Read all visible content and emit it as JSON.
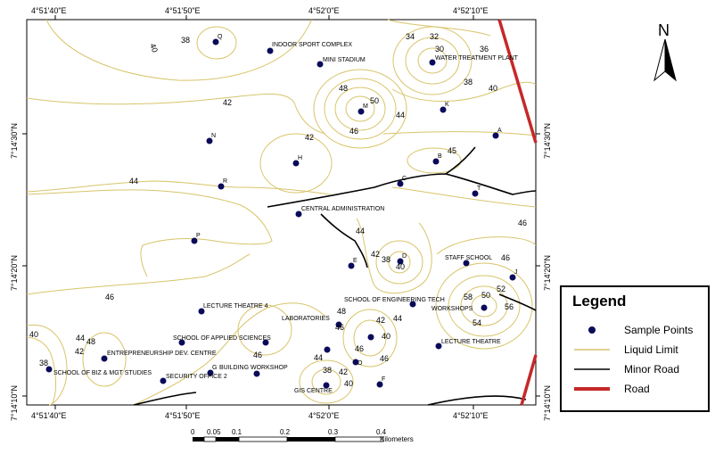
{
  "map": {
    "top_ticks": [
      "4°51'40\"E",
      "4°51'50\"E",
      "4°52'0\"E",
      "4°52'10\"E"
    ],
    "bottom_ticks": [
      "4°51'40\"E",
      "4°51'50\"E",
      "4°52'0\"E",
      "4°52'10\"E"
    ],
    "left_ticks": [
      "7°14'30\"N",
      "7°14'20\"N",
      "7°14'10\"N"
    ],
    "right_ticks": [
      "7°14'30\"N",
      "7°14'20\"N",
      "7°14'10\"N"
    ],
    "places": {
      "indoor": "INDOOR SPORT COMPLEX",
      "mini": "MINI STADIUM",
      "water": "WATER TREATMENT PLANT",
      "central": "CENTRAL ADMINISTRATION",
      "staff": "STAFF SCHOOL",
      "lt4": "LECTURE THEATRE 4",
      "engtech": "SCHOOL OF ENGINEERING TECH",
      "workshops": "WORKSHOPS",
      "labs": "LABORATORIES",
      "applied": "SCHOOL OF APPLIED SCIENCES",
      "lecture": "LECTURE THEATRE",
      "entrep": "ENTREPRENEURSHIP DEV. CENTRE",
      "biz": "SCHOOL OF BIZ & MGT STUDIES",
      "security": "SECURITY OFFICE 2",
      "bldg": "BUILDING WORKSHOP",
      "gis": "GIS CENTRE"
    },
    "point_letters": {
      "Q": "Q",
      "M": "M",
      "K": "K",
      "A": "A",
      "N": "N",
      "H": "H",
      "B": "B",
      "R": "R",
      "T": "T",
      "P": "P",
      "D": "D",
      "E": "E",
      "J": "J",
      "G": "G",
      "O": "O",
      "F": "F",
      "C": "C"
    },
    "contour_labels": [
      "40",
      "38",
      "42",
      "32",
      "34",
      "30",
      "36",
      "38",
      "40",
      "48",
      "50",
      "44",
      "46",
      "42",
      "44",
      "45",
      "44",
      "42",
      "38",
      "40",
      "46",
      "46",
      "52",
      "50",
      "58",
      "56",
      "54",
      "46",
      "48",
      "46",
      "42",
      "44",
      "40",
      "46",
      "44",
      "38",
      "42",
      "40",
      "40",
      "38",
      "44",
      "42",
      "48",
      "46",
      "46"
    ]
  },
  "legend": {
    "title": "Legend",
    "items": [
      {
        "label": "Sample Points",
        "symbol": "point",
        "color": "#0a0a5a"
      },
      {
        "label": "Liquid Limit",
        "symbol": "line",
        "color": "#d8c46a"
      },
      {
        "label": "Minor Road",
        "symbol": "line",
        "color": "#000000"
      },
      {
        "label": "Road",
        "symbol": "road",
        "color": "#c62828"
      }
    ]
  },
  "north_arrow": {
    "label": "N"
  },
  "scale": {
    "ticks": [
      "0",
      "0.05",
      "0.1",
      "0.2",
      "0.3",
      "0.4"
    ],
    "unit": "Kilometers"
  }
}
